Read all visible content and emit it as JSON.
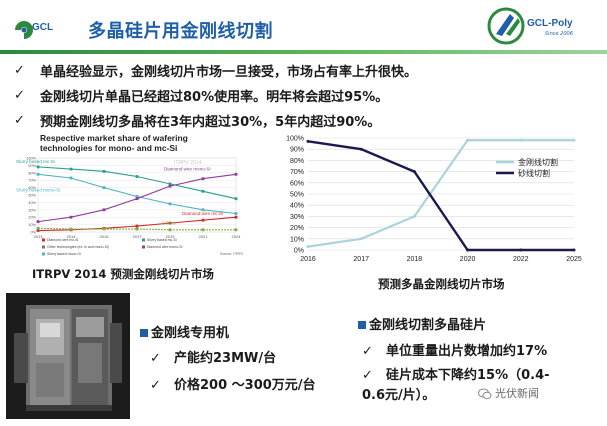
{
  "header": {
    "logo_left": "GCL",
    "title": "多晶硅片用金刚线切割",
    "logo_right": "GCL-Poly",
    "logo_right_since": "Since 2006",
    "accent": "#1f5fa8",
    "rule_color": "#2b8a3e"
  },
  "bullets": [
    "单晶经验显示，金刚线切片市场一旦接受，市场占有率上升很快。",
    "金刚线切片单晶已经超过80%使用率。明年将会超过95%。",
    "预期金刚线切多晶将在3年内超过30%，5年内超过90%。"
  ],
  "chart_data": [
    {
      "type": "line",
      "title": "Respective market share of wafering technologies for mono- and mc-Si",
      "x": [
        "2013",
        "2014",
        "2015",
        "2017",
        "2019",
        "2021",
        "2024"
      ],
      "ylim": [
        0,
        100
      ],
      "yticks": [
        "0%",
        "10%",
        "20%",
        "30%",
        "40%",
        "50%",
        "60%",
        "70%",
        "80%",
        "90%",
        "100%"
      ],
      "watermark": "ITRPV 2014",
      "source": "Source: ITRPV",
      "series": [
        {
          "name": "Slurry based mc-Si",
          "color": "#2a9d8f",
          "values": [
            88,
            85,
            82,
            75,
            65,
            55,
            45
          ]
        },
        {
          "name": "Slurry based mono-Si",
          "color": "#4fb3c4",
          "values": [
            78,
            73,
            60,
            48,
            38,
            30,
            25
          ]
        },
        {
          "name": "Diamond wire mono-Si",
          "color": "#8e3b9e",
          "values": [
            14,
            20,
            30,
            45,
            62,
            72,
            78
          ]
        },
        {
          "name": "Diamond wire mc-Si",
          "color": "#d62828",
          "values": [
            2,
            3,
            5,
            8,
            12,
            16,
            20
          ]
        },
        {
          "name": "Others",
          "color": "#7cb342",
          "values": [
            5,
            4,
            4,
            4,
            3,
            3,
            3
          ]
        }
      ],
      "inline_labels": [
        "Slurry based mc-Si",
        "Slurry based mono-Si",
        "Diamond wire mono-Si",
        "Diamond wire mc-Si",
        "Others"
      ],
      "legend": [
        "Diamond wire mc-Si",
        "Slurry based mc-Si",
        "Other technologies (ex: in and mono-Si)",
        "Diamond wire mono-Si",
        "Slurry based mono-Si"
      ],
      "caption": "ITRPV 2014 预测金刚线切片市场"
    },
    {
      "type": "line",
      "x": [
        "2016",
        "2017",
        "2018",
        "2020",
        "2022",
        "2025"
      ],
      "ylim": [
        0,
        100
      ],
      "yticks": [
        "0%",
        "10%",
        "20%",
        "30%",
        "40%",
        "50%",
        "60%",
        "70%",
        "80%",
        "90%",
        "100%"
      ],
      "series": [
        {
          "name": "金刚线切割",
          "color": "#a8d4dc",
          "values": [
            3,
            10,
            30,
            98,
            98,
            98
          ]
        },
        {
          "name": "砂线切割",
          "color": "#1a1a4e",
          "values": [
            97,
            90,
            70,
            0,
            0,
            0
          ]
        }
      ],
      "legend_position": "right",
      "caption": "预测多晶金刚线切片市场"
    }
  ],
  "sections": {
    "machine_title": "金刚线专用机",
    "machine_items": [
      "产能约23MW/台",
      "价格200 ～300万元/台"
    ],
    "poly_title": "金刚线切割多晶硅片",
    "poly_items": [
      "单位重量出片数增加约17%",
      "硅片成本下降约15%（0.4-0.6元/片）。"
    ]
  },
  "watermark": "光伏新闻",
  "check_glyph": "✓"
}
